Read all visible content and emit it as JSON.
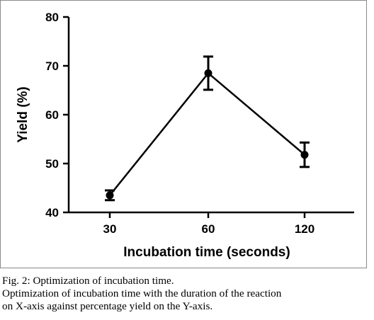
{
  "chart_data": {
    "type": "line",
    "categories": [
      "30",
      "60",
      "120"
    ],
    "series": [
      {
        "values": [
          43.5,
          68.5,
          51.8
        ],
        "error": [
          1.0,
          3.4,
          2.5
        ]
      }
    ],
    "xlabel": "Incubation time (seconds)",
    "ylabel": "Yield (%)",
    "ylim": [
      40,
      80
    ],
    "yticks": [
      "40",
      "50",
      "60",
      "70",
      "80"
    ],
    "grid": false,
    "error_bars": true,
    "markers": "filled-circle",
    "color": "#000000"
  },
  "caption": {
    "title": "Fig. 2: Optimization of incubation time.",
    "body_line1": "Optimization of incubation time with the duration of the reaction",
    "body_line2": "on X-axis against percentage yield on the Y-axis."
  }
}
